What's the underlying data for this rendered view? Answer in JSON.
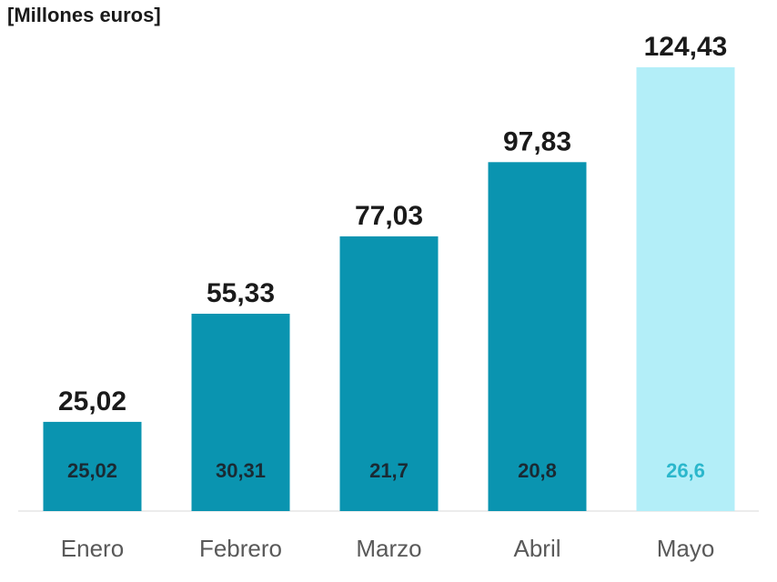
{
  "chart_data": {
    "type": "bar",
    "unit_label": "[Millones euros]",
    "categories": [
      "Enero",
      "Febrero",
      "Marzo",
      "Abril",
      "Mayo"
    ],
    "values": [
      25.02,
      55.33,
      77.03,
      97.83,
      124.43
    ],
    "value_labels": [
      "25,02",
      "55,33",
      "77,03",
      "97,83",
      "124,43"
    ],
    "monthly_labels": [
      "25,02",
      "30,31",
      "21,7",
      "20,8",
      "26,6"
    ],
    "title": "",
    "xlabel": "",
    "ylabel": "",
    "ylim": [
      0,
      124.43
    ],
    "grid": false,
    "legend": "none",
    "colors": {
      "bar": "#0a94b0",
      "highlight_bar": "#b3eef8",
      "highlight_index": 4,
      "monthly_text": "#1a2a33",
      "highlight_monthly_text": "#2bb7cc"
    }
  }
}
